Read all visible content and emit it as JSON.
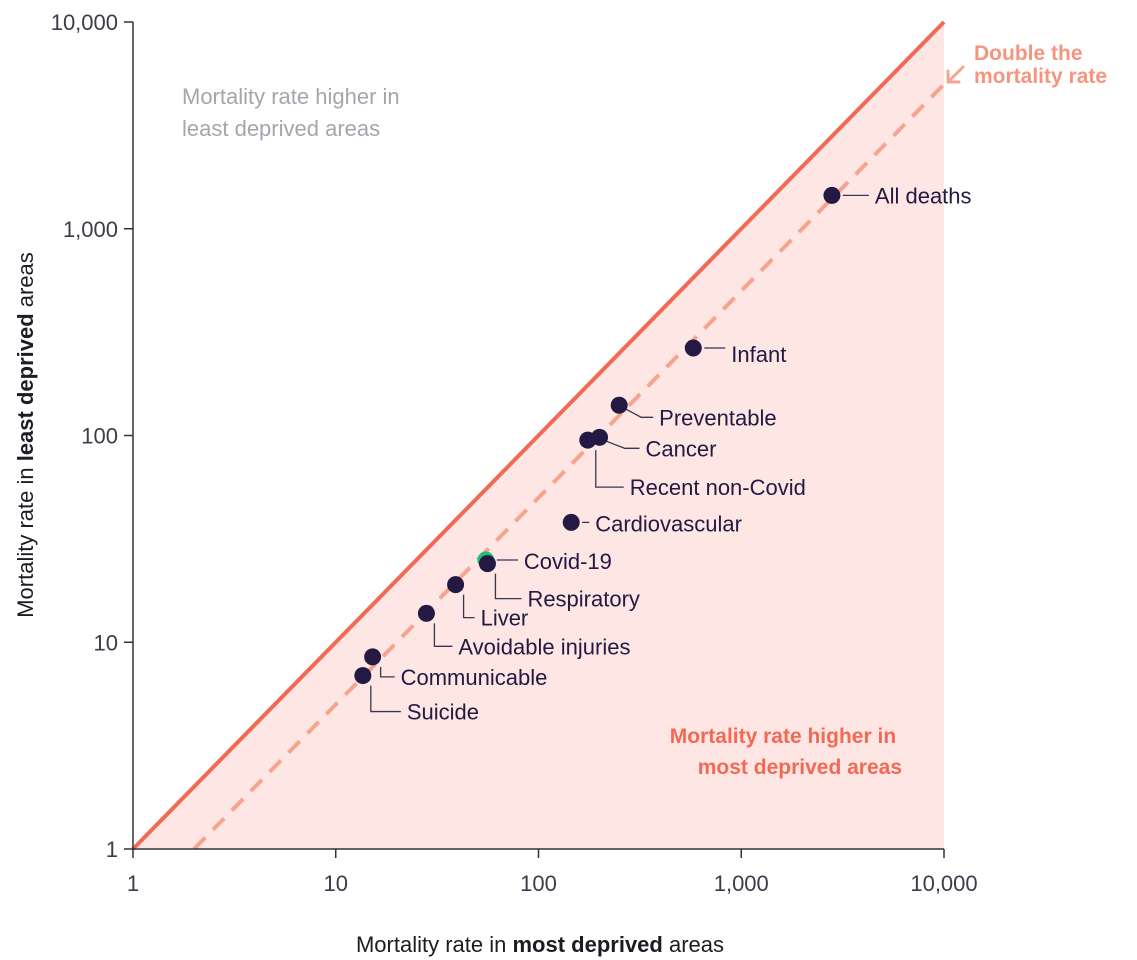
{
  "chart_data": {
    "type": "scatter",
    "xlabel": {
      "pre": "Mortality rate in ",
      "bold": "most deprived",
      "post": " areas"
    },
    "ylabel": {
      "pre": "Mortality rate in ",
      "bold": "least deprived",
      "post": " areas"
    },
    "x_scale": "log",
    "y_scale": "log",
    "xlim": [
      1,
      10000
    ],
    "ylim": [
      1,
      10000
    ],
    "x_ticks": [
      1,
      10,
      100,
      1000,
      10000
    ],
    "x_tick_labels": [
      "1",
      "10",
      "100",
      "1,000",
      "10,000"
    ],
    "y_ticks": [
      1,
      10,
      100,
      1000,
      10000
    ],
    "y_tick_labels": [
      "1",
      "10",
      "100",
      "1,000",
      "10,000"
    ],
    "grid": false,
    "reference_lines": [
      {
        "kind": "equal",
        "relation": "y = x",
        "style": "solid"
      },
      {
        "kind": "double",
        "relation": "y = x / 2",
        "style": "dashed"
      }
    ],
    "annotations": {
      "double_line": [
        "Double the",
        "mortality rate"
      ],
      "upper_region": [
        "Mortality rate higher in",
        "least deprived areas"
      ],
      "lower_region": [
        "Mortality rate higher in",
        "most deprived areas"
      ]
    },
    "points": [
      {
        "label": "All deaths",
        "x": 2800,
        "y": 1450,
        "highlight": false
      },
      {
        "label": "Infant",
        "x": 580,
        "y": 265,
        "highlight": false
      },
      {
        "label": "Preventable",
        "x": 250,
        "y": 140,
        "highlight": false
      },
      {
        "label": "Cancer",
        "x": 200,
        "y": 98,
        "highlight": false
      },
      {
        "label": "Recent non-Covid",
        "x": 175,
        "y": 95,
        "highlight": false
      },
      {
        "label": "Cardiovascular",
        "x": 145,
        "y": 38,
        "highlight": false
      },
      {
        "label": "Covid-19",
        "x": 55,
        "y": 25,
        "highlight": true
      },
      {
        "label": "Respiratory",
        "x": 56,
        "y": 24,
        "highlight": false
      },
      {
        "label": "Liver",
        "x": 39,
        "y": 19,
        "highlight": false
      },
      {
        "label": "Avoidable injuries",
        "x": 28,
        "y": 13.8,
        "highlight": false
      },
      {
        "label": "Communicable",
        "x": 15.2,
        "y": 8.5,
        "highlight": false
      },
      {
        "label": "Suicide",
        "x": 13.6,
        "y": 6.9,
        "highlight": false
      }
    ],
    "colors": {
      "point": "#231942",
      "highlight": "#1fbf77",
      "highlight_label": "#118a48",
      "equal_line": "#f26a55",
      "double_line": "#f7a48f",
      "shade": "#fde6e3"
    }
  }
}
